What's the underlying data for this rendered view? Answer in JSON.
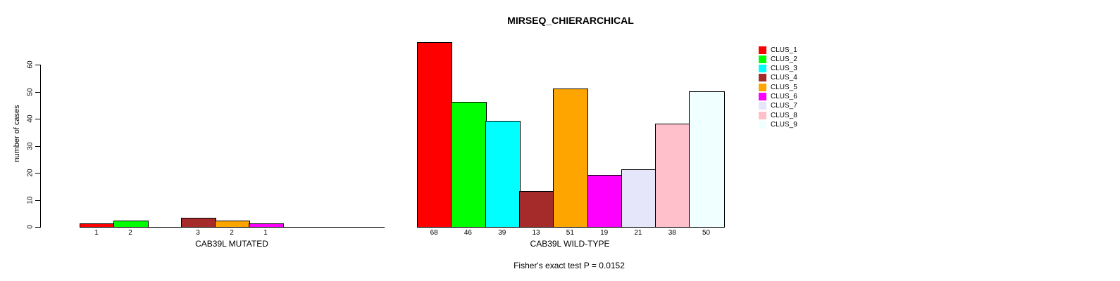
{
  "title": "MIRSEQ_CHIERARCHICAL",
  "annotation": "Fisher's exact test P = 0.0152",
  "y_axis": {
    "label": "number of cases",
    "ticks": [
      0,
      10,
      20,
      30,
      40,
      50,
      60
    ]
  },
  "legend": {
    "items": [
      {
        "label": "CLUS_1",
        "color": "#FF0000"
      },
      {
        "label": "CLUS_2",
        "color": "#00FF00"
      },
      {
        "label": "CLUS_3",
        "color": "#00FFFF"
      },
      {
        "label": "CLUS_4",
        "color": "#A52A2A"
      },
      {
        "label": "CLUS_5",
        "color": "#FFA500"
      },
      {
        "label": "CLUS_6",
        "color": "#FF00FF"
      },
      {
        "label": "CLUS_7",
        "color": "#E6E6FA"
      },
      {
        "label": "CLUS_8",
        "color": "#FFC0CB"
      },
      {
        "label": "CLUS_9",
        "color": "#F0FFFF"
      }
    ]
  },
  "chart_data": [
    {
      "type": "bar",
      "title": "MIRSEQ_CHIERARCHICAL",
      "xlabel": "CAB39L MUTATED",
      "ylabel": "number of cases",
      "categories": [
        "CLUS_1",
        "CLUS_2",
        "CLUS_3",
        "CLUS_4",
        "CLUS_5",
        "CLUS_6",
        "CLUS_7",
        "CLUS_8",
        "CLUS_9"
      ],
      "values": [
        1,
        2,
        0,
        3,
        2,
        1,
        0,
        0,
        0
      ],
      "bar_labels": [
        "1",
        "2",
        "",
        "3",
        "2",
        "1",
        "",
        "",
        ""
      ],
      "colors": [
        "#FF0000",
        "#00FF00",
        "#00FFFF",
        "#A52A2A",
        "#FFA500",
        "#FF00FF",
        "#E6E6FA",
        "#FFC0CB",
        "#F0FFFF"
      ],
      "ylim": [
        0,
        60
      ],
      "grid": false,
      "legend_position": "right"
    },
    {
      "type": "bar",
      "title": "MIRSEQ_CHIERARCHICAL",
      "xlabel": "CAB39L WILD-TYPE",
      "ylabel": "number of cases",
      "categories": [
        "CLUS_1",
        "CLUS_2",
        "CLUS_3",
        "CLUS_4",
        "CLUS_5",
        "CLUS_6",
        "CLUS_7",
        "CLUS_8",
        "CLUS_9"
      ],
      "values": [
        68,
        46,
        39,
        13,
        51,
        19,
        21,
        38,
        50
      ],
      "bar_labels": [
        "68",
        "46",
        "39",
        "13",
        "51",
        "19",
        "21",
        "38",
        "50"
      ],
      "colors": [
        "#FF0000",
        "#00FF00",
        "#00FFFF",
        "#A52A2A",
        "#FFA500",
        "#FF00FF",
        "#E6E6FA",
        "#FFC0CB",
        "#F0FFFF"
      ],
      "ylim": [
        0,
        60
      ],
      "grid": false,
      "legend_position": "right"
    }
  ]
}
